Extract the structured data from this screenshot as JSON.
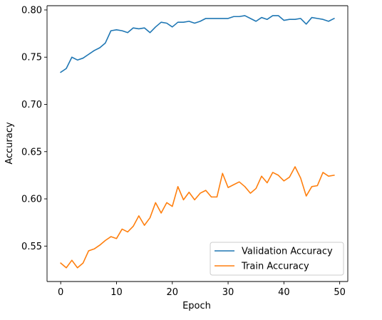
{
  "chart_data": {
    "type": "line",
    "title": "",
    "xlabel": "Epoch",
    "ylabel": "Accuracy",
    "xlim": [
      -2.45,
      51.45
    ],
    "ylim": [
      0.5125,
      0.8045
    ],
    "xticks": [
      0,
      10,
      20,
      30,
      40,
      50
    ],
    "yticks": [
      0.55,
      0.6,
      0.65,
      0.7,
      0.75,
      0.8
    ],
    "ytick_labels": [
      "0.55",
      "0.60",
      "0.65",
      "0.70",
      "0.75",
      "0.80"
    ],
    "xtick_labels": [
      "0",
      "10",
      "20",
      "30",
      "40",
      "50"
    ],
    "grid": false,
    "legend_position": "lower-right",
    "x": [
      0,
      1,
      2,
      3,
      4,
      5,
      6,
      7,
      8,
      9,
      10,
      11,
      12,
      13,
      14,
      15,
      16,
      17,
      18,
      19,
      20,
      21,
      22,
      23,
      24,
      25,
      26,
      27,
      28,
      29,
      30,
      31,
      32,
      33,
      34,
      35,
      36,
      37,
      38,
      39,
      40,
      41,
      42,
      43,
      44,
      45,
      46,
      47,
      48,
      49
    ],
    "series": [
      {
        "name": "Validation Accuracy",
        "color": "#1f77b4",
        "values": [
          0.734,
          0.738,
          0.75,
          0.747,
          0.749,
          0.753,
          0.757,
          0.76,
          0.765,
          0.778,
          0.779,
          0.778,
          0.776,
          0.781,
          0.78,
          0.781,
          0.776,
          0.782,
          0.787,
          0.786,
          0.782,
          0.787,
          0.787,
          0.788,
          0.786,
          0.788,
          0.791,
          0.791,
          0.791,
          0.791,
          0.791,
          0.793,
          0.793,
          0.794,
          0.791,
          0.788,
          0.792,
          0.79,
          0.794,
          0.794,
          0.789,
          0.79,
          0.79,
          0.791,
          0.785,
          0.792,
          0.791,
          0.79,
          0.788,
          0.791
        ]
      },
      {
        "name": "Train Accuracy",
        "color": "#ff7f0e",
        "values": [
          0.532,
          0.527,
          0.535,
          0.527,
          0.532,
          0.545,
          0.547,
          0.551,
          0.556,
          0.56,
          0.558,
          0.568,
          0.565,
          0.571,
          0.582,
          0.572,
          0.58,
          0.596,
          0.585,
          0.596,
          0.592,
          0.613,
          0.599,
          0.607,
          0.599,
          0.606,
          0.609,
          0.602,
          0.602,
          0.627,
          0.612,
          0.615,
          0.618,
          0.613,
          0.606,
          0.611,
          0.624,
          0.617,
          0.628,
          0.625,
          0.619,
          0.623,
          0.634,
          0.622,
          0.603,
          0.613,
          0.614,
          0.628,
          0.624,
          0.625
        ]
      }
    ]
  }
}
